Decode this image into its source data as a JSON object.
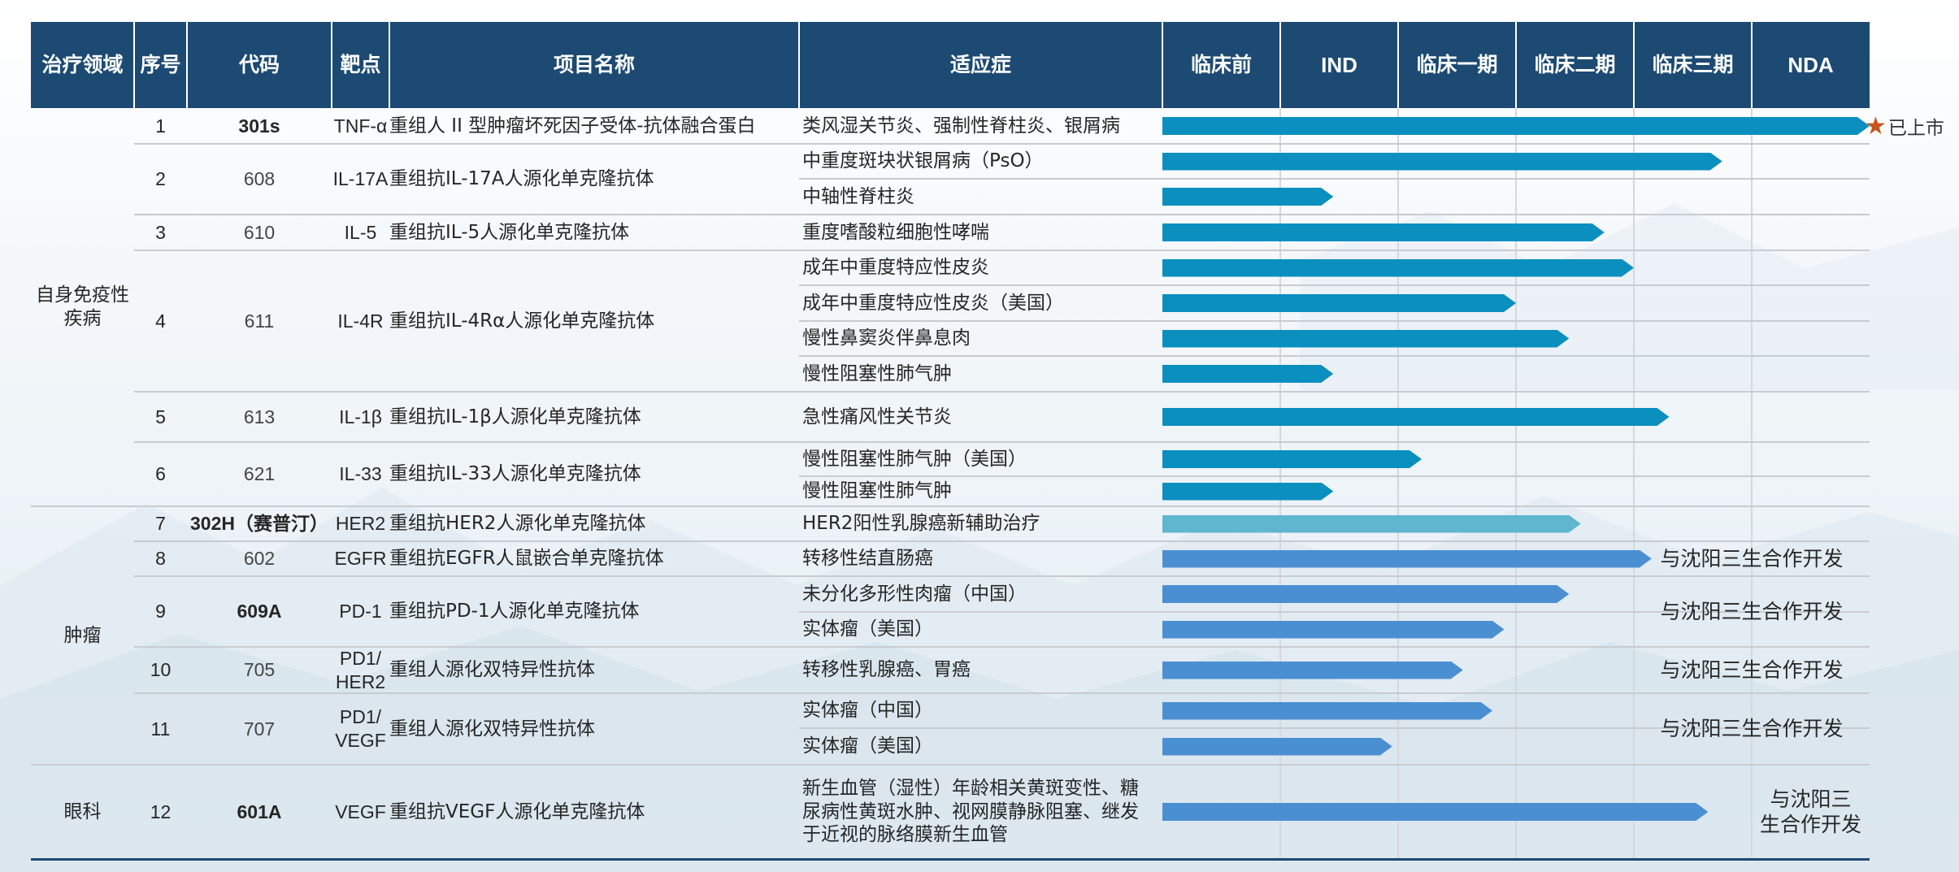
{
  "header": {
    "domain": "治疗领域",
    "seq": "序号",
    "code": "代码",
    "target": "靶点",
    "name": "项目名称",
    "indication": "适应症",
    "phases": [
      "临床前",
      "IND",
      "临床一期",
      "临床二期",
      "临床三期",
      "NDA"
    ]
  },
  "domains": [
    {
      "label": "自身免疫性\n疾病"
    },
    {
      "label": "肿瘤"
    },
    {
      "label": "眼科"
    }
  ],
  "projects": [
    {
      "seq": "1",
      "code": "301s",
      "target": "TNF-α",
      "name": "重组人 II 型肿瘤坏死因子受体-抗体融合蛋白"
    },
    {
      "seq": "2",
      "code": "608",
      "target": "IL-17A",
      "name": "重组抗IL-17A人源化单克隆抗体"
    },
    {
      "seq": "3",
      "code": "610",
      "target": "IL-5",
      "name": "重组抗IL-5人源化单克隆抗体"
    },
    {
      "seq": "4",
      "code": "611",
      "target": "IL-4R",
      "name": "重组抗IL-4Rα人源化单克隆抗体"
    },
    {
      "seq": "5",
      "code": "613",
      "target": "IL-1β",
      "name": "重组抗IL-1β人源化单克隆抗体"
    },
    {
      "seq": "6",
      "code": "621",
      "target": "IL-33",
      "name": "重组抗IL-33人源化单克隆抗体"
    },
    {
      "seq": "7",
      "code": "302H（赛普汀）",
      "target": "HER2",
      "name": "重组抗HER2人源化单克隆抗体"
    },
    {
      "seq": "8",
      "code": "602",
      "target": "EGFR",
      "name": "重组抗EGFR人鼠嵌合单克隆抗体",
      "note": "与沈阳三生合作开发"
    },
    {
      "seq": "9",
      "code": "609A",
      "target": "PD-1",
      "name": "重组抗PD-1人源化单克隆抗体",
      "note": "与沈阳三生合作开发"
    },
    {
      "seq": "10",
      "code": "705",
      "target": "PD1/\nHER2",
      "name": "重组人源化双特异性抗体",
      "note": "与沈阳三生合作开发"
    },
    {
      "seq": "11",
      "code": "707",
      "target": "PD1/\nVEGF",
      "name": "重组人源化双特异性抗体",
      "note": "与沈阳三生合作开发"
    },
    {
      "seq": "12",
      "code": "601A",
      "target": "VEGF",
      "name": "重组抗VEGF人源化单克隆抗体",
      "note": "与沈阳三\n生合作开发"
    }
  ],
  "launched_label": "已上市",
  "colors": {
    "header_bg": "#1c4a73",
    "bar_autoimmune": "#0a8fbf",
    "bar_her2": "#5fb6ce",
    "bar_oncology": "#4b8fd3",
    "star": "#c8551e"
  },
  "chart_data": {
    "type": "bar",
    "orientation": "horizontal",
    "x_unit": "development stage (0 = start of 临床前, 6 = end of NDA)",
    "stages": [
      "临床前",
      "IND",
      "临床一期",
      "临床二期",
      "临床三期",
      "NDA"
    ],
    "xlim": [
      0,
      6
    ],
    "series": [
      {
        "values": [
          {
            "seq": "1",
            "indication": "类风湿关节炎、强制性脊柱炎、银屑病",
            "progress": 6.0,
            "launched": true
          },
          {
            "seq": "2",
            "indication": "中重度斑块状银屑病（PsO）",
            "progress": 4.75
          },
          {
            "seq": "2",
            "indication": "中轴性脊柱炎",
            "progress": 1.45
          },
          {
            "seq": "3",
            "indication": "重度嗜酸粒细胞性哮喘",
            "progress": 3.75
          },
          {
            "seq": "4",
            "indication": "成年中重度特应性皮炎",
            "progress": 4.0
          },
          {
            "seq": "4",
            "indication": "成年中重度特应性皮炎（美国）",
            "progress": 3.0
          },
          {
            "seq": "4",
            "indication": "慢性鼻窦炎伴鼻息肉",
            "progress": 3.45
          },
          {
            "seq": "4",
            "indication": "慢性阻塞性肺气肿",
            "progress": 1.45
          },
          {
            "seq": "5",
            "indication": "急性痛风性关节炎",
            "progress": 4.3
          },
          {
            "seq": "6",
            "indication": "慢性阻塞性肺气肿（美国）",
            "progress": 2.2
          },
          {
            "seq": "6",
            "indication": "慢性阻塞性肺气肿",
            "progress": 1.45
          },
          {
            "seq": "7",
            "indication": "HER2阳性乳腺癌新辅助治疗",
            "progress": 3.55
          },
          {
            "seq": "8",
            "indication": "转移性结直肠癌",
            "progress": 4.15
          },
          {
            "seq": "9",
            "indication": "未分化多形性肉瘤（中国）",
            "progress": 3.45
          },
          {
            "seq": "9",
            "indication": "实体瘤（美国）",
            "progress": 2.9
          },
          {
            "seq": "10",
            "indication": "转移性乳腺癌、胃癌",
            "progress": 2.55
          },
          {
            "seq": "11",
            "indication": "实体瘤（中国）",
            "progress": 2.8
          },
          {
            "seq": "11",
            "indication": "实体瘤（美国）",
            "progress": 1.95
          },
          {
            "seq": "12",
            "indication": "新生血管（湿性）年龄相关黄斑变性、糖\n尿病性黄斑水肿、视网膜静脉阻塞、继发\n于近视的脉络膜新生血管",
            "progress": 4.63
          }
        ]
      }
    ]
  }
}
